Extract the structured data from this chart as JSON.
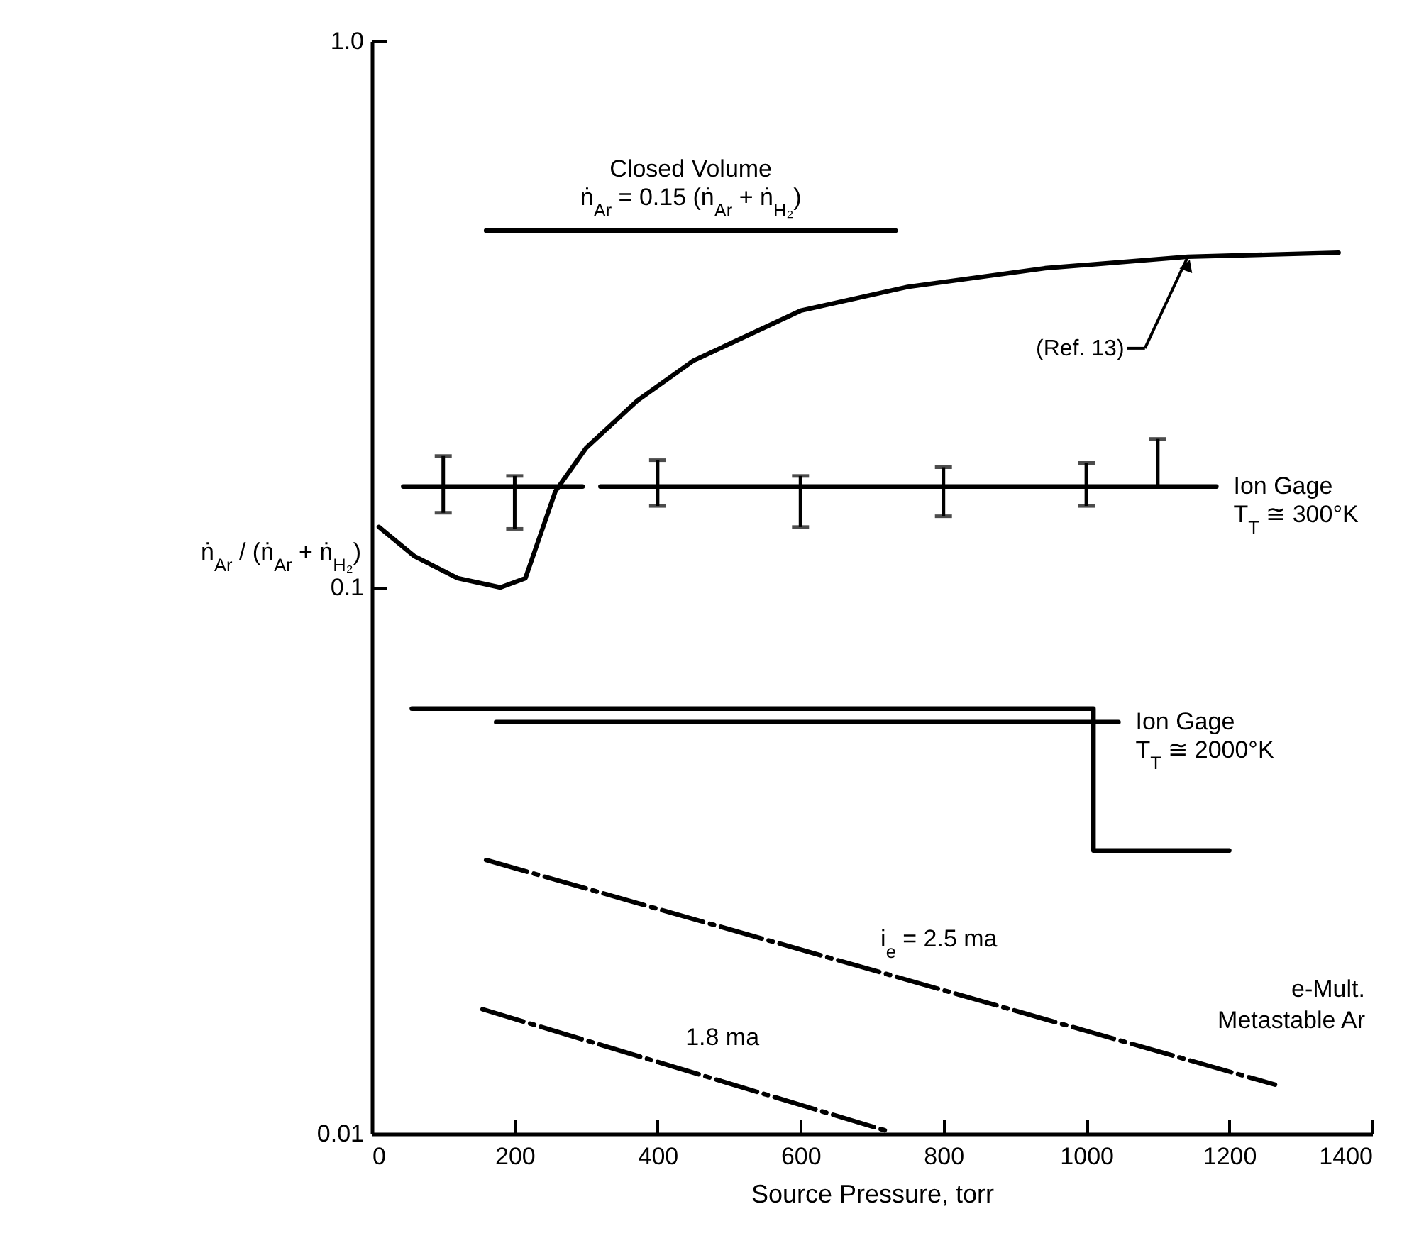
{
  "chart_data": {
    "type": "line",
    "xlabel": "Source Pressure, torr",
    "ylabel": "ṅ$_{Ar}$ / (ṅ$_{Ar}$ + ṅ$_{H₂}$)",
    "log": true,
    "xlim": [
      0,
      1400
    ],
    "xticks": [
      0,
      200,
      400,
      600,
      800,
      1000,
      1200,
      1400
    ],
    "ylim": [
      0.01,
      1
    ],
    "yticks": [
      {
        "value": 1,
        "label": "1.0"
      },
      0.1,
      {
        "value": 0.01,
        "label": "0.01"
      }
    ],
    "series": [
      {
        "name": "Closed Volume\nṅ$_{Ar}$ = 0.15 (ṅ$_{Ar}$ + ṅ$_{H₂}$)",
        "color": "#000000",
        "x": [
          160,
          733
        ],
        "values": [
          0.45,
          0.45
        ]
      },
      {
        "color": "#000000",
        "x": [
          10,
          60,
          120,
          180,
          215,
          257,
          300,
          372,
          450,
          600,
          750,
          942,
          1142,
          1353
        ],
        "values": [
          0.129,
          0.114,
          0.104,
          0.1,
          0.104,
          0.15,
          0.18,
          0.22,
          0.26,
          0.321,
          0.355,
          0.384,
          0.403,
          0.41
        ]
      },
      {
        "name": "Ion Gage\nT$_{T}$ ≅ 300°K",
        "color": "#000000",
        "x": [
          44,
          100,
          200,
          295,
          308,
          320,
          400,
          600,
          800,
          1000,
          1100,
          1182
        ],
        "values": [
          0.153,
          0.153,
          0.153,
          0.153,
          null,
          0.153,
          0.153,
          0.153,
          0.153,
          0.153,
          0.153,
          0.153
        ],
        "errors": [
          null,
          [
            0.137,
            0.174
          ],
          [
            0.128,
            0.16
          ],
          null,
          null,
          null,
          [
            0.141,
            0.171
          ],
          [
            0.129,
            0.16
          ],
          [
            0.135,
            0.166
          ],
          [
            0.141,
            0.169
          ],
          [
            0.153,
            0.187
          ],
          null
        ]
      },
      {
        "color": "#000000",
        "x": [
          56,
          1010,
          1010,
          1200
        ],
        "values": [
          0.06,
          0.06,
          0.033,
          0.033
        ]
      },
      {
        "name": "Ion Gage\nT$_{T}$ ≅ 2000°K",
        "color": "#000000",
        "x": [
          174,
          1045
        ],
        "values": [
          0.0567,
          0.0567
        ]
      },
      {
        "name": "i$_{e}$ = 2.5 ma",
        "color": "#000000",
        "line_style": "dashed",
        "x": [
          160,
          1264
        ],
        "values": [
          0.0317,
          0.0123
        ]
      },
      {
        "name": "1.8 ma",
        "color": "#000000",
        "line_style": "dashed",
        "x": [
          155,
          723
        ],
        "values": [
          0.0169,
          0.0101
        ]
      }
    ],
    "annotations": [
      {
        "text": "(Ref. 13)",
        "x": 1142,
        "y": 0.403
      },
      "e-Mult.\nMetastable Ar"
    ]
  }
}
